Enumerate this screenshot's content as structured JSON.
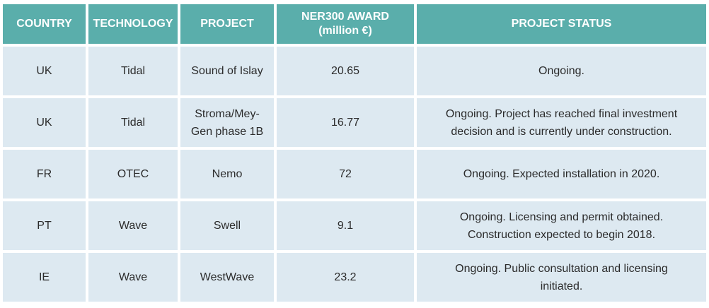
{
  "table": {
    "headers": {
      "country": "COUNTRY",
      "technology": "TECHNOLOGY",
      "project": "PROJECT",
      "award_line1": "NER300 AWARD",
      "award_line2": "(million €)",
      "status": "PROJECT STATUS"
    },
    "rows": [
      {
        "country": "UK",
        "technology": "Tidal",
        "project_line1": "Sound of Islay",
        "project_line2": "",
        "award": "20.65",
        "status_line1": "Ongoing.",
        "status_line2": ""
      },
      {
        "country": "UK",
        "technology": "Tidal",
        "project_line1": "Stroma/Mey-",
        "project_line2": "Gen phase 1B",
        "award": "16.77",
        "status_line1": "Ongoing. Project has reached final investment",
        "status_line2": "decision and is currently under construction."
      },
      {
        "country": "FR",
        "technology": "OTEC",
        "project_line1": "Nemo",
        "project_line2": "",
        "award": "72",
        "status_line1": "Ongoing. Expected installation in 2020.",
        "status_line2": ""
      },
      {
        "country": "PT",
        "technology": "Wave",
        "project_line1": "Swell",
        "project_line2": "",
        "award": "9.1",
        "status_line1": "Ongoing. Licensing and permit obtained.",
        "status_line2": "Construction expected to begin 2018."
      },
      {
        "country": "IE",
        "technology": "Wave",
        "project_line1": "WestWave",
        "project_line2": "",
        "award": "23.2",
        "status_line1": "Ongoing. Public consultation and licensing",
        "status_line2": "initiated."
      }
    ]
  },
  "colors": {
    "header_bg": "#5aaeab",
    "header_text": "#ffffff",
    "cell_bg": "#dde9f1",
    "cell_text": "#2b2b2b"
  }
}
